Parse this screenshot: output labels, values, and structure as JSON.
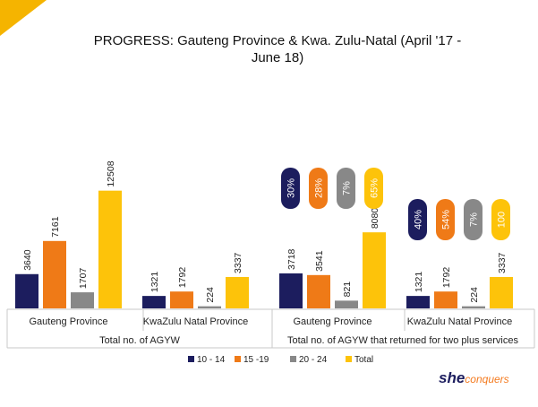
{
  "title": "PROGRESS: Gauteng Province & Kwa. Zulu-Natal (April '17 - June 18)",
  "title_lines": [
    "PROGRESS: Gauteng Province & Kwa. Zulu-Natal (April '17 -",
    "June 18)"
  ],
  "brand": {
    "part1": "she",
    "part2": "conquers"
  },
  "colors": {
    "c1": "#1c1d5e",
    "c2": "#ef7a17",
    "c3": "#888888",
    "c4": "#fdc30a",
    "corner": "#f5b400",
    "grid": "#c8c8c8"
  },
  "chart_data": {
    "type": "bar",
    "legend_position": "bottom",
    "series_names": [
      "10 - 14",
      "15 -19",
      "20 - 24",
      "Total"
    ],
    "panels": [
      {
        "label": "Total no. of AGYW",
        "groups": [
          {
            "name": "Gauteng Province",
            "values": [
              3640,
              7161,
              1707,
              12508
            ]
          },
          {
            "name": "KwaZulu Natal Province",
            "values": [
              1321,
              1792,
              224,
              3337
            ]
          }
        ]
      },
      {
        "label": "Total no. of AGYW that returned for two plus services",
        "groups": [
          {
            "name": "Gauteng Province",
            "values": [
              3718,
              3541,
              821,
              8080
            ],
            "badges": [
              "30%",
              "28%",
              "7%",
              "65%"
            ]
          },
          {
            "name": "KwaZulu Natal Province",
            "values": [
              1321,
              1792,
              224,
              3337
            ],
            "badges": [
              "40%",
              "54%",
              "7%",
              "100"
            ]
          }
        ]
      }
    ]
  }
}
